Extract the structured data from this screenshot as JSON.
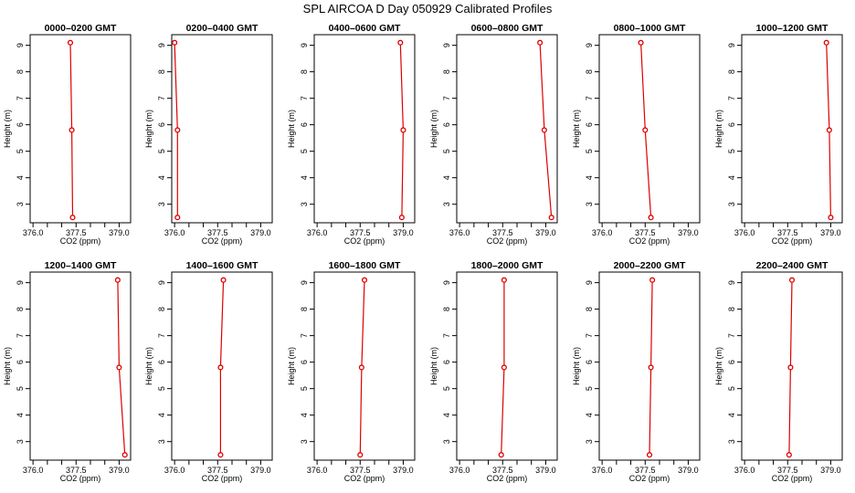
{
  "title": "SPL AIRCOA D  Day 050929  Calibrated Profiles",
  "colors": {
    "series": "#dd0000",
    "axis": "#000000",
    "background": "#ffffff"
  },
  "chart_data": {
    "type": "line",
    "layout": "2 rows x 6 panels",
    "xlabel": "CO2 (ppm)",
    "ylabel": "Height (m)",
    "xlim": [
      375.9,
      379.4
    ],
    "ylim": [
      2.3,
      9.4
    ],
    "xticks": [
      376.0,
      377.5,
      379.0
    ],
    "xtick_labels": [
      "376.0",
      "377.5",
      "379.0"
    ],
    "xticks_minor": [
      376.5,
      377.0,
      378.0,
      378.5
    ],
    "yticks": [
      3,
      4,
      5,
      6,
      7,
      8,
      9
    ],
    "ytick_labels": [
      "3",
      "4",
      "5",
      "6",
      "7",
      "8",
      "9"
    ],
    "grid": false,
    "legend": "none",
    "marker": "open circle",
    "panels": [
      {
        "title": "0000–0200 GMT",
        "heights": [
          9.1,
          5.8,
          2.5
        ],
        "values": [
          377.3,
          377.35,
          377.38
        ]
      },
      {
        "title": "0200–0400 GMT",
        "heights": [
          9.1,
          5.8,
          2.5
        ],
        "values": [
          376.0,
          376.1,
          376.1
        ]
      },
      {
        "title": "0400–0600 GMT",
        "heights": [
          9.1,
          5.8,
          2.5
        ],
        "values": [
          378.9,
          379.0,
          378.95
        ]
      },
      {
        "title": "0600–0800 GMT",
        "heights": [
          9.1,
          5.8,
          2.5
        ],
        "values": [
          378.8,
          378.95,
          379.2
        ]
      },
      {
        "title": "0800–1000 GMT",
        "heights": [
          9.1,
          5.8,
          2.5
        ],
        "values": [
          377.35,
          377.5,
          377.7
        ]
      },
      {
        "title": "1000–1200 GMT",
        "heights": [
          9.1,
          5.8,
          2.5
        ],
        "values": [
          378.85,
          378.95,
          379.0
        ]
      },
      {
        "title": "1200–1400 GMT",
        "heights": [
          9.1,
          5.8,
          2.5
        ],
        "values": [
          378.95,
          379.0,
          379.2
        ]
      },
      {
        "title": "1400–1600 GMT",
        "heights": [
          9.1,
          5.8,
          2.5
        ],
        "values": [
          377.7,
          377.6,
          377.6
        ]
      },
      {
        "title": "1600–1800 GMT",
        "heights": [
          9.1,
          5.8,
          2.5
        ],
        "values": [
          377.65,
          377.55,
          377.5
        ]
      },
      {
        "title": "1800–2000 GMT",
        "heights": [
          9.1,
          5.8,
          2.5
        ],
        "values": [
          377.55,
          377.55,
          377.45
        ]
      },
      {
        "title": "2000–2200 GMT",
        "heights": [
          9.1,
          5.8,
          2.5
        ],
        "values": [
          377.75,
          377.7,
          377.65
        ]
      },
      {
        "title": "2200–2400 GMT",
        "heights": [
          9.1,
          5.8,
          2.5
        ],
        "values": [
          377.65,
          377.6,
          377.55
        ]
      }
    ]
  }
}
